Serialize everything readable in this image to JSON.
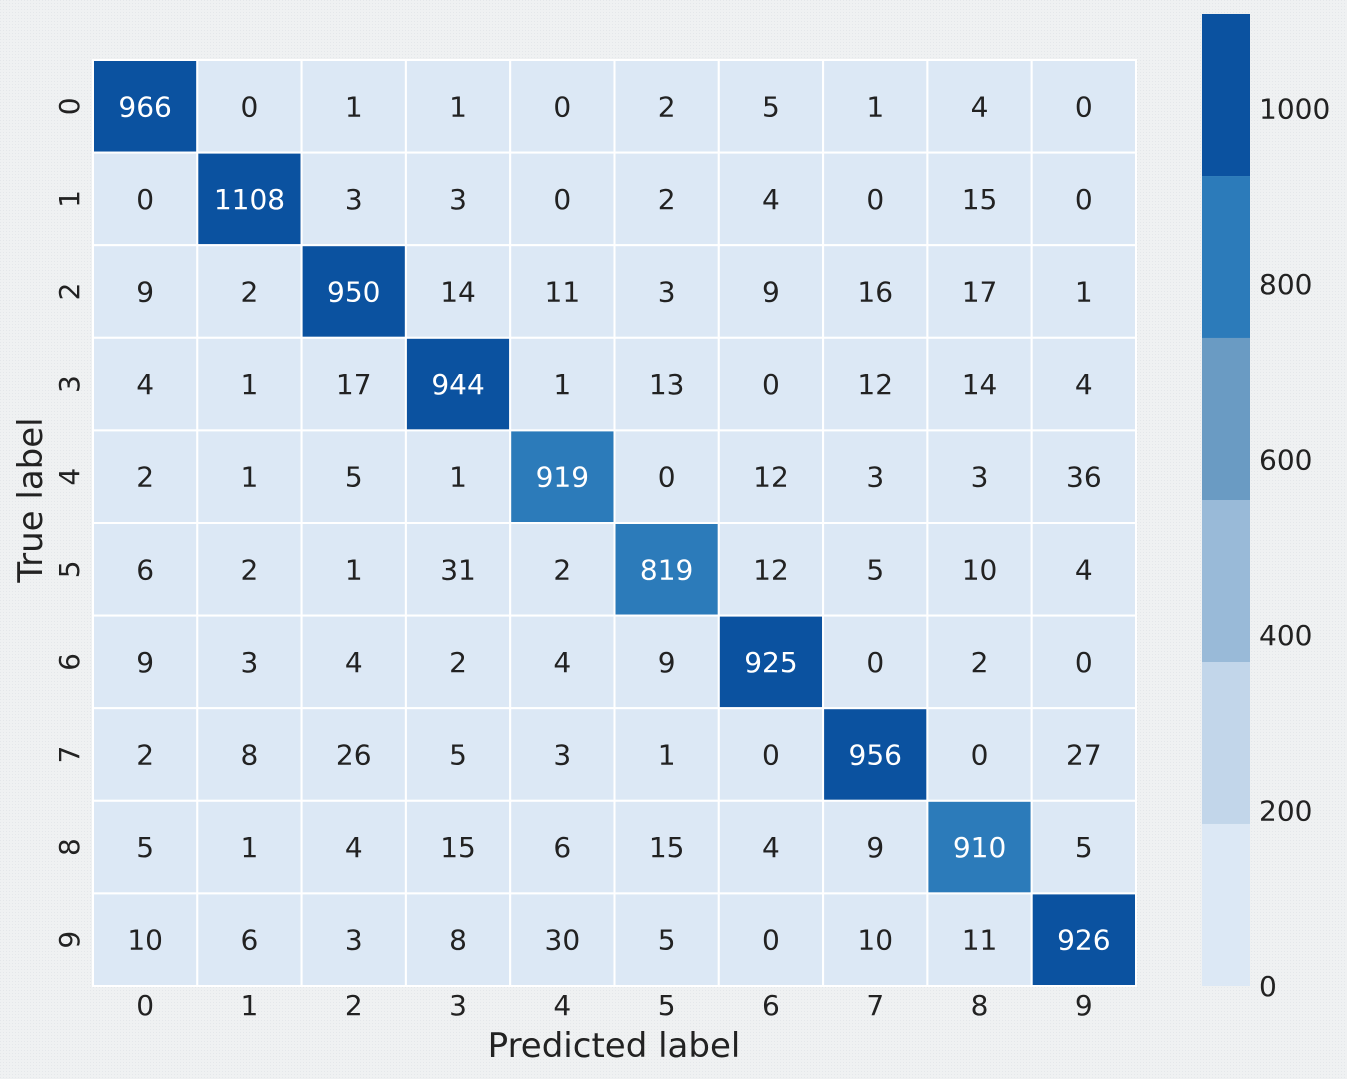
{
  "chart_data": {
    "type": "heatmap",
    "title": "",
    "xlabel": "Predicted label",
    "ylabel": "True label",
    "x_categories": [
      "0",
      "1",
      "2",
      "3",
      "4",
      "5",
      "6",
      "7",
      "8",
      "9"
    ],
    "y_categories": [
      "0",
      "1",
      "2",
      "3",
      "4",
      "5",
      "6",
      "7",
      "8",
      "9"
    ],
    "values": [
      [
        966,
        0,
        1,
        1,
        0,
        2,
        5,
        1,
        4,
        0
      ],
      [
        0,
        1108,
        3,
        3,
        0,
        2,
        4,
        0,
        15,
        0
      ],
      [
        9,
        2,
        950,
        14,
        11,
        3,
        9,
        16,
        17,
        1
      ],
      [
        4,
        1,
        17,
        944,
        1,
        13,
        0,
        12,
        14,
        4
      ],
      [
        2,
        1,
        5,
        1,
        919,
        0,
        12,
        3,
        3,
        36
      ],
      [
        6,
        2,
        1,
        31,
        2,
        819,
        12,
        5,
        10,
        4
      ],
      [
        9,
        3,
        4,
        2,
        4,
        9,
        925,
        0,
        2,
        0
      ],
      [
        2,
        8,
        26,
        5,
        3,
        1,
        0,
        956,
        0,
        27
      ],
      [
        5,
        1,
        4,
        15,
        6,
        15,
        4,
        9,
        910,
        5
      ],
      [
        10,
        6,
        3,
        8,
        30,
        5,
        0,
        10,
        11,
        926
      ]
    ],
    "colorbar": {
      "range": [
        0,
        1108
      ],
      "ticks": [
        0,
        200,
        400,
        600,
        800,
        1000
      ],
      "bins": [
        {
          "from": 0,
          "to": 184.7,
          "color": "#dce8f5"
        },
        {
          "from": 184.7,
          "to": 369.3,
          "color": "#c2d6ea"
        },
        {
          "from": 369.3,
          "to": 554.0,
          "color": "#99bad8"
        },
        {
          "from": 554.0,
          "to": 738.7,
          "color": "#6a9bc3"
        },
        {
          "from": 738.7,
          "to": 923.3,
          "color": "#2c7bba"
        },
        {
          "from": 923.3,
          "to": 1108,
          "color": "#0b52a0"
        }
      ]
    },
    "grid": false,
    "legend": "colorbar-right"
  }
}
